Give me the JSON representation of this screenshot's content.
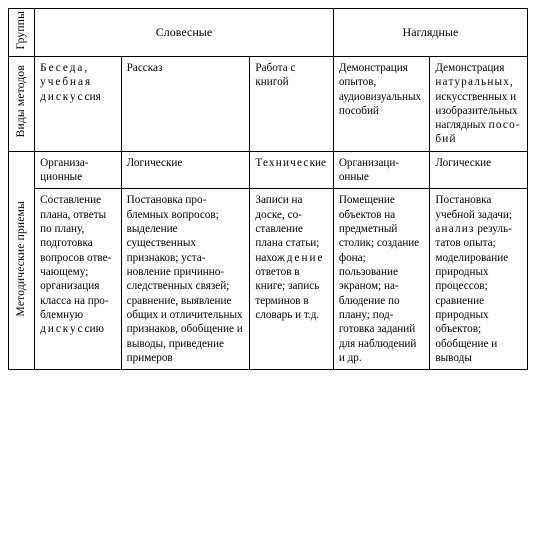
{
  "rowLabels": {
    "groups": "Группы",
    "methodTypes": "Виды методов",
    "techniques": "Методические приемы"
  },
  "groupHeaders": {
    "verbal": "Словесные",
    "visual": "Наглядные"
  },
  "methods": {
    "c1": "Беседа, учебная дискус­сия",
    "c2": "Рассказ",
    "c3": "Работа с книгой",
    "c4": "Демонстра­ция опытов, аудиовизу­альных пособий",
    "c5": "Демонстра­ция нату­ральных, искусствен­ных и изо­бразитель­ных нагляд­ных посо­бий"
  },
  "techRow1": {
    "c1": "Организа­ционные",
    "c2": "Логические",
    "c3": "Техничес­кие",
    "c4": "Организаци­онные",
    "c5": "Логические"
  },
  "techRow2": {
    "c1": "Составле­ние плана, ответы по плану, подготов­ка вопро­сов отве­чающему; организа­ция клас­са на про­блемную дискус­сию",
    "c2": "Постановка про­блемных вопро­сов; выделение существенных признаков; уста­новление при­чинно-следствен­ных связей; срав­нение, выявле­ние общих и от­личительных признаков, обоб­щение и выводы, приведение при­меров",
    "c3": "Записи на доске, со­ставление плана ста­тьи; нахо­ждение ответов в книге; за­пись тер­минов в словарь и т.д.",
    "c4": "Помещение объектов на предметный столик; соз­дание фона; пользование экраном; на­блюдение по плану; под­готовка за­даний для наблюдений и др.",
    "c5": "Постановка учебной за­дачи; ана­лиз резуль­татов опыта; моделирова­ние природ­ных процес­сов; сравне­ние природ­ных объек­тов; обобще­ние и выводы"
  }
}
